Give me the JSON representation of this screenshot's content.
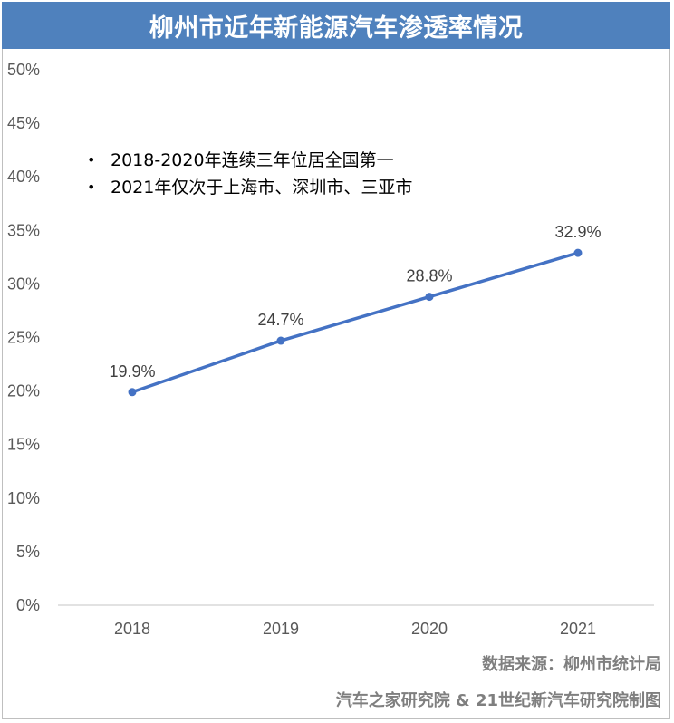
{
  "header": {
    "title": "柳州市近年新能源汽车渗透率情况"
  },
  "notes": [
    "2018-2020年连续三年位居全国第一",
    "2021年仅次于上海市、深圳市、三亚市"
  ],
  "footer": {
    "source": "数据来源：柳州市统计局",
    "credit": "汽车之家研究院 & 21世纪新汽车研究院制图"
  },
  "colors": {
    "title_bg": "#4f81bd",
    "line": "#4472c4"
  },
  "chart_data": {
    "type": "line",
    "title": "柳州市近年新能源汽车渗透率情况",
    "categories": [
      "2018",
      "2019",
      "2020",
      "2021"
    ],
    "values": [
      19.9,
      24.7,
      28.8,
      32.9
    ],
    "data_labels": [
      "19.9%",
      "24.7%",
      "28.8%",
      "32.9%"
    ],
    "y_ticks": [
      0,
      5,
      10,
      15,
      20,
      25,
      30,
      35,
      40,
      45,
      50
    ],
    "y_tick_labels": [
      "0%",
      "5%",
      "10%",
      "15%",
      "20%",
      "25%",
      "30%",
      "35%",
      "40%",
      "45%",
      "50%"
    ],
    "ylim": [
      0,
      50
    ],
    "xlabel": "",
    "ylabel": "",
    "grid": false,
    "legend": "none"
  }
}
